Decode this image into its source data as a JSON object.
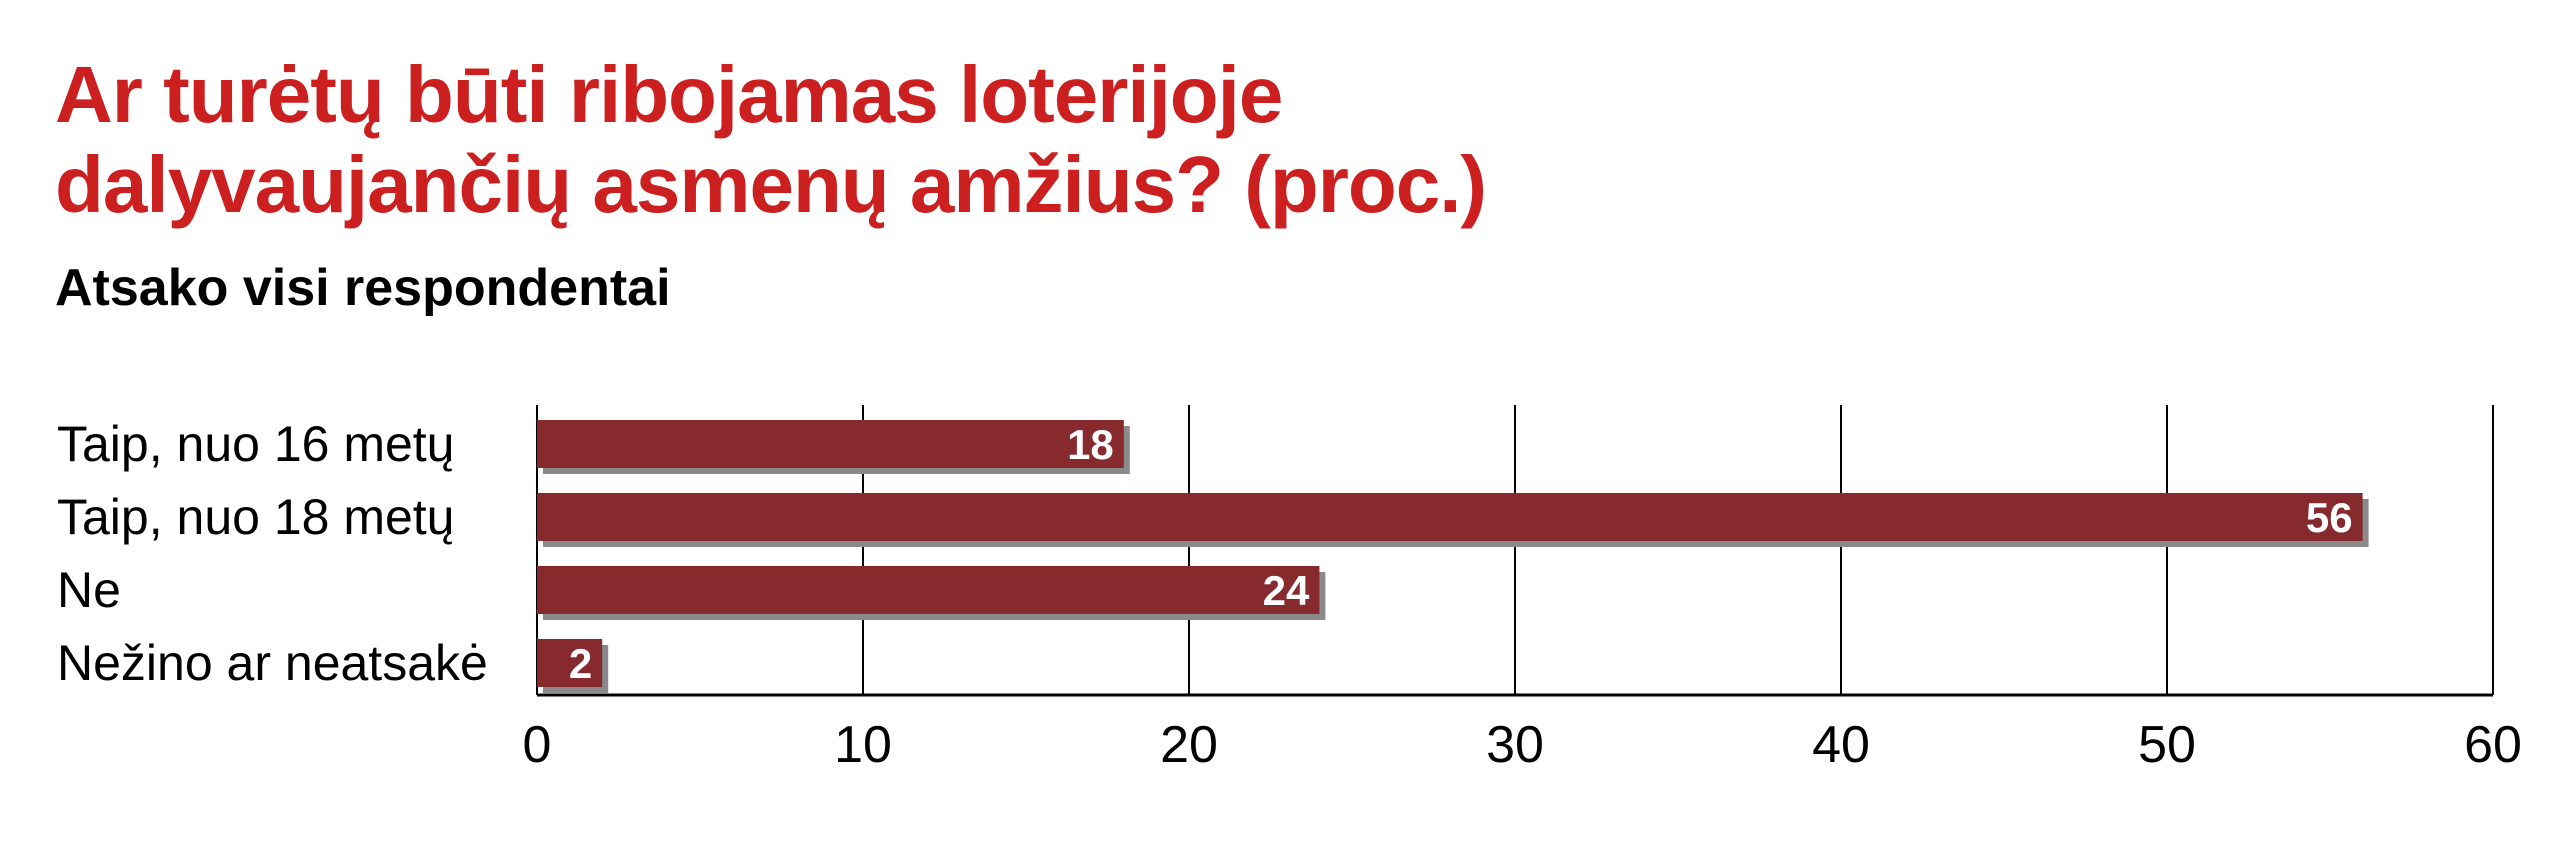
{
  "header": {
    "title_lines": [
      "Ar turėtų būti ribojamas loterijoje",
      "dalyvaujančių asmenų amžius? (proc.)"
    ],
    "subtitle": "Atsako visi respondentai"
  },
  "chart_data": {
    "type": "bar",
    "orientation": "horizontal",
    "title": "Ar turėtų būti ribojamas loterijoje dalyvaujančių asmenų amžius? (proc.)",
    "subtitle": "Atsako visi respondentai",
    "categories": [
      "Taip, nuo 16 metų",
      "Taip, nuo 18 metų",
      "Ne",
      "Nežino ar neatsakė"
    ],
    "values": [
      18,
      56,
      24,
      2
    ],
    "data_labels": [
      "18",
      "56",
      "24",
      "2"
    ],
    "xlim": [
      0,
      60
    ],
    "xticks": [
      0,
      10,
      20,
      30,
      40,
      50,
      60
    ],
    "xtick_labels": [
      "0",
      "10",
      "20",
      "30",
      "40",
      "50",
      "60"
    ],
    "xlabel": "",
    "ylabel": "",
    "grid": true,
    "legend": false,
    "colors": {
      "bar": "#862a2e",
      "bar_shadow": "#8a8a8a",
      "title": "#cc1f1f",
      "grid": "#000000",
      "label": "#000000",
      "data_label": "#ffffff"
    }
  }
}
